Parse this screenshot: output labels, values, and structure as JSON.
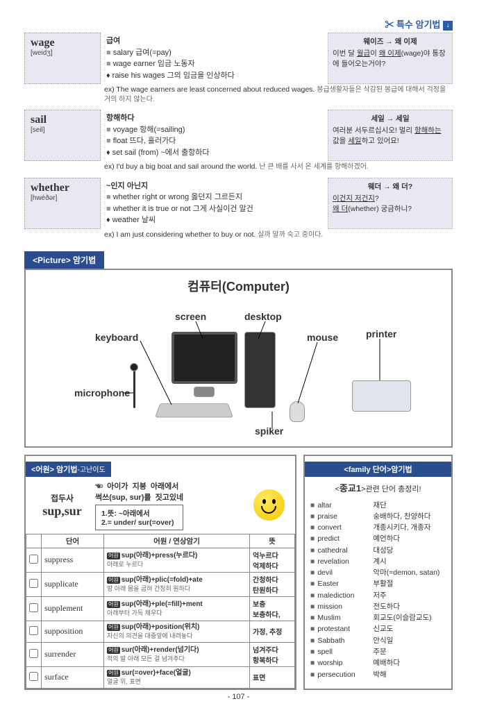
{
  "header": {
    "title": "특수 암기법",
    "scissors": "✂"
  },
  "vocab": [
    {
      "word": "wage",
      "pron": "[weidʒ]",
      "meaning": "급여",
      "lines": [
        "salary  급여(=pay)",
        "wage earner  임금 노동자"
      ],
      "phrase": "♦ raise his wages  그의 임금을 인상하다",
      "mnemonic_title": "웨이즈 → 왜 이제",
      "mnemonic_body": "이번 달 월급이 왜 이제(wage)야 통장에 들어오는거야?",
      "example_en": "The wage earners are least concerned about reduced wages.",
      "example_kr": "봉급생활자들은 삭감된 봉급에 대해서 걱정을 거의 하지 않는다."
    },
    {
      "word": "sail",
      "pron": "[seil]",
      "meaning": "항해하다",
      "lines": [
        "voyage  항해(=sailing)",
        "float  뜨다, 흘러가다"
      ],
      "phrase": "♦ set sail (from)   ~에서 출항하다",
      "mnemonic_title": "세일 → 세일",
      "mnemonic_body": "여러분 서두르십시오! 멀리 항해하는 값을 세일하고 있어요!",
      "example_en": "I'd buy a big boat and sail around the world.",
      "example_kr": "난 큰 배를 사서 온 세계를 항해하겠어."
    },
    {
      "word": "whether",
      "pron": "[hwéðər]",
      "meaning": "~인지 아닌지",
      "lines": [
        "whether right or wrong  옳던지 그르든지",
        "whether it is true or not  그게 사실이건 말건"
      ],
      "phrase": "♦ weather  날씨",
      "mnemonic_title": "웨더 → 왜 더?",
      "mnemonic_body": "이건지 저건지?\n왜 더(whether) 궁금하니?",
      "example_en": "I am just considering whether to buy or not.",
      "example_kr": "살까 말까 숙고 중이다."
    }
  ],
  "picture": {
    "tab": "<Picture> 암기법",
    "title": "컴퓨터(Computer)",
    "labels": {
      "keyboard": "keyboard",
      "screen": "screen",
      "desktop": "desktop",
      "mouse": "mouse",
      "printer": "printer",
      "microphone": "microphone",
      "spiker": "spiker"
    }
  },
  "etymology": {
    "tab": "<어원> 암기법",
    "tab_sub": "-고난이도",
    "prefix_label": "접두사",
    "prefix": "sup,sur",
    "desc_top": "☜  아이가  지붕  아래에서\n썩쓰(sup, sur)를  짓고있네",
    "desc_box": "1.뜻: ~아래에서\n2.= under/ sur(=over)",
    "headers": {
      "c1": "단어",
      "c2": "어원 / 연상암기",
      "c3": "뜻"
    },
    "rows": [
      {
        "w": "suppress",
        "a": "sup(아래)+press(누르다)",
        "s": "아래로 누르다",
        "m": "억누르다\n억제하다"
      },
      {
        "w": "supplicate",
        "a": "sup(아래)+plic(=fold)+ate",
        "s": "땅 아래 몸을 굽혀 간청히 원하다",
        "m": "간청하다\n탄원하다"
      },
      {
        "w": "supplement",
        "a": "sup(아래)+ple(=fill)+ment",
        "s": "아래부터 가득 채우다",
        "m": "보충\n보충하다,"
      },
      {
        "w": "supposition",
        "a": "sup(아래)+position(위치)",
        "s": "자신의 의견을 대중앞에 내려놓다",
        "m": "가정, 추정"
      },
      {
        "w": "surrender",
        "a": "sur(아래)+render(넘기다)",
        "s": "적의 발 아래 모든 걸 넘겨주다",
        "m": "넘겨주다\n항복하다"
      },
      {
        "w": "surface",
        "a": "sur(=over)+face(얼굴)",
        "s": "얼굴 위, 표면",
        "m": "표면"
      }
    ]
  },
  "family": {
    "tab": "<family 단어>암기법",
    "title_prefix": "<",
    "title_main": "종교1",
    "title_suffix": ">관련 단어 총정리!",
    "rows": [
      {
        "en": "altar",
        "kr": "재단"
      },
      {
        "en": "praise",
        "kr": "숭배하다, 찬양하다"
      },
      {
        "en": "convert",
        "kr": "개종시키다, 개종자"
      },
      {
        "en": "predict",
        "kr": "예언하다"
      },
      {
        "en": "cathedral",
        "kr": "대성당"
      },
      {
        "en": "revelation",
        "kr": "계시"
      },
      {
        "en": "devil",
        "kr": "악마(=demon, satan)"
      },
      {
        "en": "Easter",
        "kr": "부활절"
      },
      {
        "en": "malediction",
        "kr": "저주"
      },
      {
        "en": "mission",
        "kr": "전도하다"
      },
      {
        "en": "Muslim",
        "kr": "회교도(이슬람교도)"
      },
      {
        "en": "protestant",
        "kr": "신교도"
      },
      {
        "en": "Sabbath",
        "kr": "안식일"
      },
      {
        "en": "spell",
        "kr": "주문"
      },
      {
        "en": "worship",
        "kr": "예배하다"
      },
      {
        "en": "persecution",
        "kr": "박해"
      }
    ]
  },
  "page_number": "- 107 -"
}
